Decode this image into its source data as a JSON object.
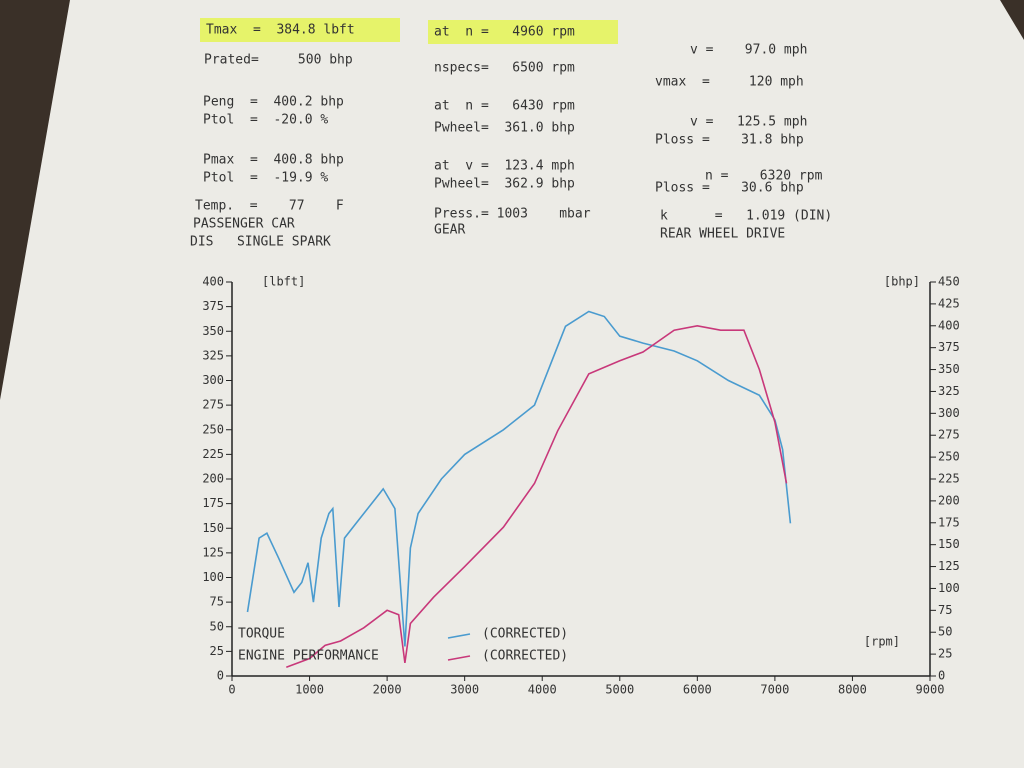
{
  "header": {
    "items": [
      "Tmax  =  384.8 lbft",
      "at  n =   4960 rpm",
      "v =    97.0 mph",
      "Prated=     500 bhp",
      "nspecs=   6500 rpm",
      "vmax  =     120 mph",
      "Peng  =  400.2 bhp",
      "at  n =   6430 rpm",
      "v =   125.5 mph",
      "Ptol  =  -20.0 %",
      "Pwheel=  361.0 bhp",
      "Ploss =    31.8 bhp",
      "Pmax  =  400.8 bhp",
      "at  v =  123.4 mph",
      "n =    6320 rpm",
      "Ptol  =  -19.9 %",
      "Pwheel=  362.9 bhp",
      "Ploss =    30.6 bhp",
      "Temp.  =    77    F",
      "Press.= 1003    mbar",
      "k      =   1.019 (DIN)",
      "PASSENGER CAR",
      "GEAR",
      "REAR WHEEL DRIVE",
      "DIS   SINGLE SPARK"
    ]
  },
  "chart_data": {
    "type": "line",
    "ylabel": "[lbft]",
    "y2label": "[bhp]",
    "xlabel": "[rpm]",
    "xlim": [
      0,
      9000
    ],
    "xticks": [
      0,
      1000,
      2000,
      3000,
      4000,
      5000,
      6000,
      7000,
      8000,
      9000
    ],
    "ylim": [
      0,
      400
    ],
    "yticks": [
      0,
      25,
      50,
      75,
      100,
      125,
      150,
      175,
      200,
      225,
      250,
      275,
      300,
      325,
      350,
      375,
      400
    ],
    "y2lim": [
      0,
      450
    ],
    "y2ticks": [
      0,
      25,
      50,
      75,
      100,
      125,
      150,
      175,
      200,
      225,
      250,
      275,
      300,
      325,
      350,
      375,
      400,
      425,
      450
    ],
    "series": [
      {
        "name": "TORQUE",
        "note": "(CORRECTED)",
        "color": "#4a9bcf",
        "axis": "y",
        "x": [
          200,
          350,
          450,
          600,
          800,
          900,
          980,
          1050,
          1150,
          1250,
          1300,
          1380,
          1450,
          1600,
          1800,
          1950,
          2100,
          2230,
          2300,
          2400,
          2700,
          3000,
          3500,
          3900,
          4100,
          4300,
          4600,
          4800,
          5000,
          5300,
          5700,
          6000,
          6400,
          6800,
          7000,
          7100,
          7200
        ],
        "values": [
          65,
          140,
          145,
          120,
          85,
          95,
          115,
          75,
          140,
          165,
          170,
          70,
          140,
          155,
          175,
          190,
          170,
          30,
          130,
          165,
          200,
          225,
          250,
          275,
          315,
          355,
          370,
          365,
          345,
          338,
          330,
          320,
          300,
          285,
          260,
          230,
          155
        ]
      },
      {
        "name": "ENGINE PERFORMANCE",
        "note": "(CORRECTED)",
        "color": "#c8387a",
        "axis": "y2",
        "x": [
          700,
          1000,
          1200,
          1400,
          1700,
          2000,
          2150,
          2230,
          2300,
          2600,
          3000,
          3500,
          3900,
          4200,
          4600,
          5000,
          5300,
          5700,
          6000,
          6300,
          6600,
          6800,
          7000,
          7150
        ],
        "values": [
          10,
          20,
          35,
          40,
          55,
          75,
          70,
          15,
          60,
          90,
          125,
          170,
          220,
          280,
          345,
          360,
          370,
          395,
          400,
          395,
          395,
          350,
          290,
          220
        ]
      }
    ]
  }
}
